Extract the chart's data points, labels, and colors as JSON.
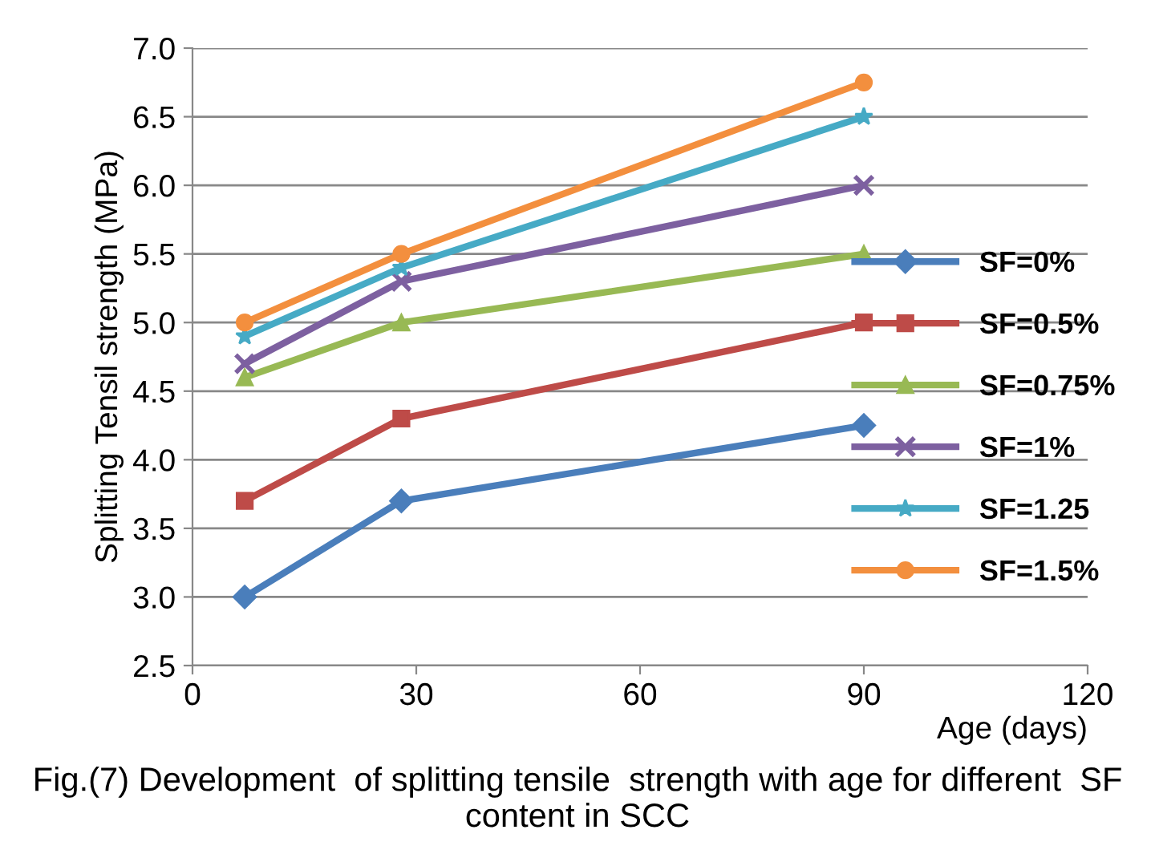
{
  "chart_data": {
    "type": "line",
    "ylabel": "Splitting Tensil strength (MPa)",
    "xlabel": "Age (days)",
    "x": [
      7,
      28,
      90
    ],
    "series": [
      {
        "name": "SF=0%",
        "color": "#4a7ebb",
        "marker": "diamond",
        "values": [
          3.0,
          3.7,
          4.25
        ]
      },
      {
        "name": "SF=0.5%",
        "color": "#be4b48",
        "marker": "square",
        "values": [
          3.7,
          4.3,
          5.0
        ]
      },
      {
        "name": "SF=0.75%",
        "color": "#98b954",
        "marker": "triangle",
        "values": [
          4.6,
          5.0,
          5.5
        ]
      },
      {
        "name": "SF=1%",
        "color": "#7d60a0",
        "marker": "cross",
        "values": [
          4.7,
          5.3,
          6.0
        ]
      },
      {
        "name": "SF=1.25",
        "color": "#46aac5",
        "marker": "star",
        "values": [
          4.9,
          5.4,
          6.5
        ]
      },
      {
        "name": "SF=1.5%",
        "color": "#f38f3e",
        "marker": "circle",
        "values": [
          5.0,
          5.5,
          6.75
        ]
      }
    ],
    "xlim": [
      0,
      120
    ],
    "xticks": [
      0,
      30,
      60,
      90,
      120
    ],
    "ylim": [
      2.5,
      7.0
    ],
    "yticks": [
      {
        "value": 2.5,
        "label": "2.5"
      },
      {
        "value": 3.0,
        "label": "3.0"
      },
      {
        "value": 3.5,
        "label": "3.5"
      },
      {
        "value": 4.0,
        "label": "4.0"
      },
      {
        "value": 4.5,
        "label": "4.5"
      },
      {
        "value": 5.0,
        "label": "5.0"
      },
      {
        "value": 5.5,
        "label": "5.5"
      },
      {
        "value": 6.0,
        "label": "6.0"
      },
      {
        "value": 6.5,
        "label": "6.5"
      },
      {
        "value": 7.0,
        "label": "7.0"
      }
    ],
    "grid": "y",
    "legend": "right",
    "line_style": "solid",
    "annotations": [
      "Fig.(7) Development  of splitting tensile  strength with age for different  SF content in SCC"
    ]
  }
}
